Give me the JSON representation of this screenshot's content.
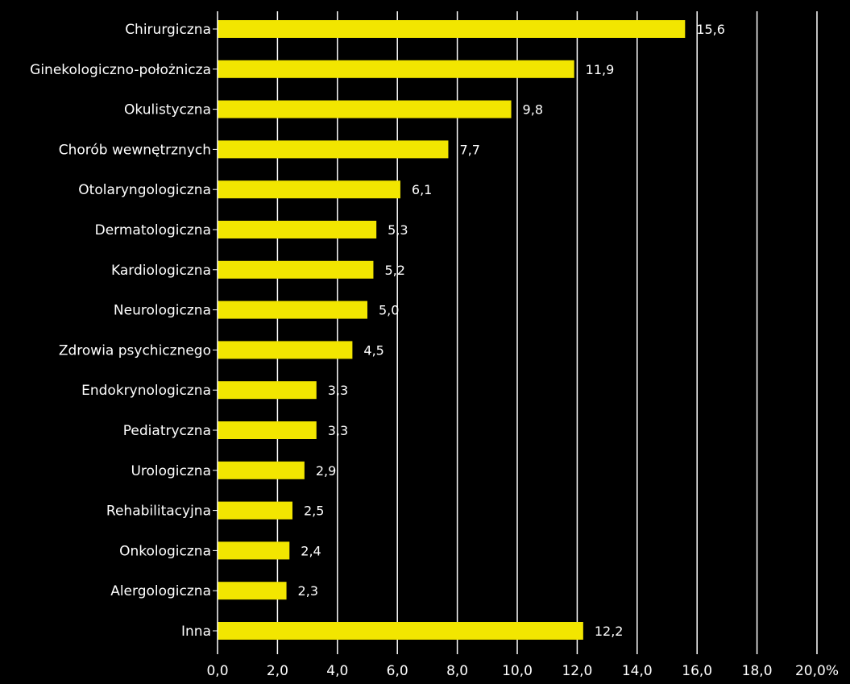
{
  "chart_data": {
    "type": "bar",
    "orientation": "horizontal",
    "categories": [
      "Chirurgiczna",
      "Ginekologiczno-położnicza",
      "Okulistyczna",
      "Chorób wewnętrznych",
      "Otolaryngologiczna",
      "Dermatologiczna",
      "Kardiologiczna",
      "Neurologiczna",
      "Zdrowia psychicznego",
      "Endokrynologiczna",
      "Pediatryczna",
      "Urologiczna",
      "Rehabilitacyjna",
      "Onkologiczna",
      "Alergologiczna",
      "Inna"
    ],
    "values": [
      15.6,
      11.9,
      9.8,
      7.7,
      6.1,
      5.3,
      5.2,
      5.0,
      4.5,
      3.3,
      3.3,
      2.9,
      2.5,
      2.4,
      2.3,
      12.2
    ],
    "value_labels": [
      "15,6",
      "11,9",
      "9,8",
      "7,7",
      "6,1",
      "5,3",
      "5,2",
      "5,0",
      "4,5",
      "3,3",
      "3,3",
      "2,9",
      "2,5",
      "2,4",
      "2,3",
      "12,2"
    ],
    "xlim": [
      0,
      20
    ],
    "x_ticks": [
      "0,0",
      "2,0",
      "4,0",
      "6,0",
      "8,0",
      "10,0",
      "12,0",
      "14,0",
      "16,0",
      "18,0",
      "20,0%"
    ],
    "grid": true,
    "title": "",
    "xlabel": "",
    "ylabel": ""
  },
  "colors": {
    "background": "#000000",
    "bar": "#f2e600",
    "grid": "#ffffff",
    "text": "#ffffff"
  }
}
